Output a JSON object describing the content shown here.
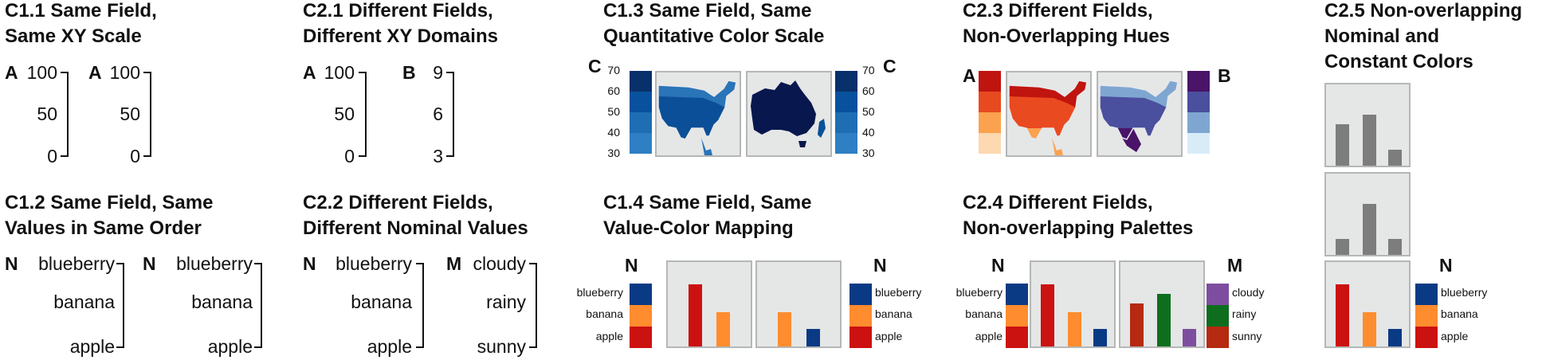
{
  "titles": {
    "c11": "C1.1 Same Field,\nSame XY Scale",
    "c21": "C2.1 Different Fields,\nDifferent XY Domains",
    "c13": "C1.3 Same Field, Same\nQuantitative Color Scale",
    "c23": "C2.3 Different Fields,\nNon-Overlapping Hues",
    "c25": "C2.5 Non-overlapping\nNominal and\nConstant Colors",
    "c12": "C1.2 Same Field, Same\nValues in Same Order",
    "c22": "C2.2 Different Fields,\nDifferent Nominal Values",
    "c14": "C1.4 Same Field, Same\nValue-Color Mapping",
    "c24": "C2.4 Different Fields,\nNon-overlapping Palettes"
  },
  "c11": {
    "field_a": "A",
    "field_b": "A",
    "ticks": [
      "100",
      "50",
      "0"
    ]
  },
  "c21": {
    "field_a": "A",
    "field_b": "B",
    "ticks_a": [
      "100",
      "50",
      "0"
    ],
    "ticks_b": [
      "9",
      "6",
      "3"
    ]
  },
  "c13": {
    "field": "C",
    "ticks": [
      "70",
      "60",
      "50",
      "40",
      "30"
    ],
    "colors": [
      "#08306b",
      "#08519c",
      "#2171b5",
      "#2b7bc0"
    ]
  },
  "c23": {
    "field_a": "A",
    "field_b": "B",
    "colors_a": [
      "#c0140f",
      "#e84a1f",
      "#fba24f",
      "#fdd8b0"
    ],
    "colors_b": [
      "#4a1468",
      "#4a4f9e",
      "#7fa6d1",
      "#d8ecf8"
    ]
  },
  "c12": {
    "field": "N",
    "values": [
      "blueberry",
      "banana",
      "apple"
    ]
  },
  "c22": {
    "field_a": "N",
    "values_a": [
      "blueberry",
      "banana",
      "apple"
    ],
    "field_b": "M",
    "values_b": [
      "cloudy",
      "rainy",
      "sunny"
    ]
  },
  "c14": {
    "field": "N",
    "values": [
      "blueberry",
      "banana",
      "apple"
    ],
    "colors": {
      "blueberry": "#0b3a85",
      "banana": "#ff8c2e",
      "apple": "#cc1111"
    }
  },
  "c24": {
    "field_n": "N",
    "values_n": [
      "blueberry",
      "banana",
      "apple"
    ],
    "field_m": "M",
    "values_m": [
      "cloudy",
      "rainy",
      "sunny"
    ],
    "colors_m": {
      "cloudy": "#7d4ea0",
      "rainy": "#0e6e1e",
      "sunny": "#b52a10"
    }
  },
  "c25": {
    "field": "N",
    "values": [
      "blueberry",
      "banana",
      "apple"
    ],
    "constant_color": "#7d7d7d"
  }
}
